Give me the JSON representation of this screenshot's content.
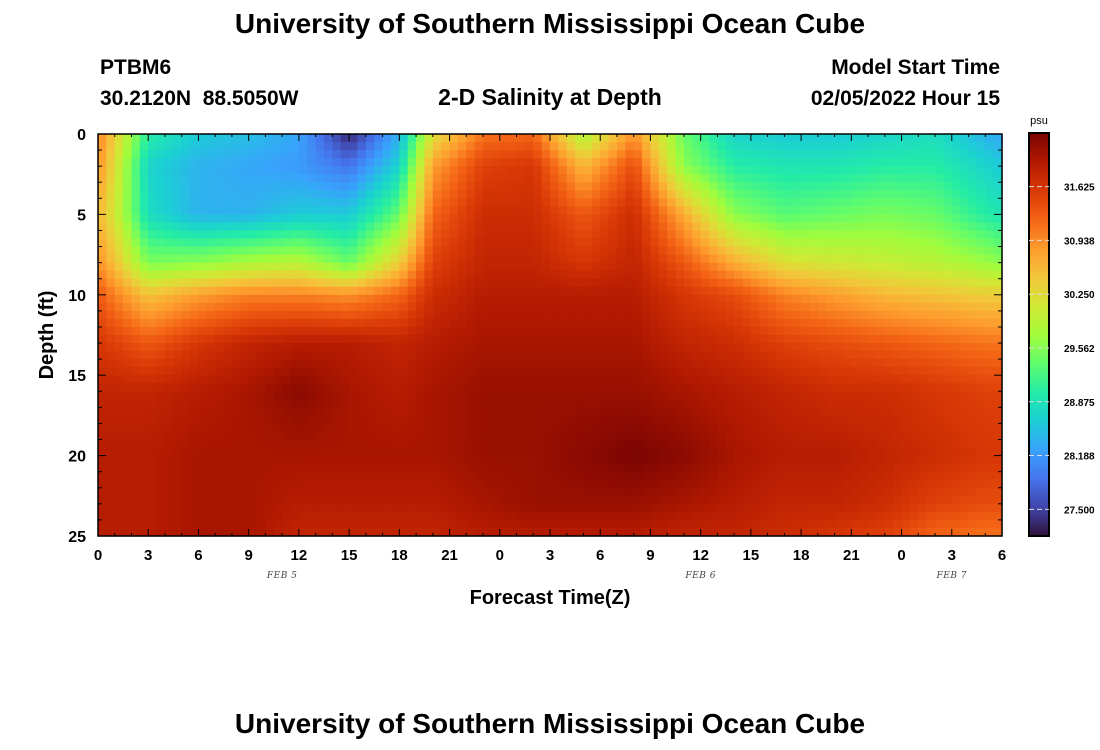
{
  "page": {
    "title_top": "University of Southern Mississippi Ocean Cube",
    "title_bottom": "University of Southern Mississippi Ocean Cube",
    "station_id": "PTBM6",
    "station_coords": "30.2120N  88.5050W",
    "plot_title": "2-D Salinity at Depth",
    "model_label": "Model Start Time",
    "model_time": "02/05/2022 Hour 15"
  },
  "chart_data": {
    "type": "heatmap",
    "title": "2-D Salinity at Depth",
    "xlabel": "Forecast Time(Z)",
    "ylabel": "Depth (ft)",
    "x_range_hours": [
      0,
      54
    ],
    "x_tick_step_hours": 3,
    "x_tick_labels": [
      "0",
      "3",
      "6",
      "9",
      "12",
      "15",
      "18",
      "21",
      "0",
      "3",
      "6",
      "9",
      "12",
      "15",
      "18",
      "21",
      "0",
      "3",
      "6"
    ],
    "date_labels": [
      {
        "text": "FEB 5",
        "hour": 11
      },
      {
        "text": "FEB 6",
        "hour": 36
      },
      {
        "text": "FEB 7",
        "hour": 51
      }
    ],
    "y_range_ft": [
      0,
      25
    ],
    "y_ticks": [
      0,
      5,
      10,
      15,
      20,
      25
    ],
    "colorbar": {
      "unit": "psu",
      "min": 27.16,
      "max": 32.31,
      "ticks": [
        "31.625",
        "30.938",
        "30.250",
        "29.562",
        "28.875",
        "28.188",
        "27.500"
      ],
      "tick_values": [
        31.625,
        30.938,
        30.25,
        29.562,
        28.875,
        28.188,
        27.5
      ],
      "colormap": [
        "#30123b",
        "#4145ab",
        "#4675ed",
        "#39a2fc",
        "#1bcfd4",
        "#24eca6",
        "#61fc6c",
        "#a4fc3b",
        "#d1e834",
        "#f3c63a",
        "#fe9b2d",
        "#f36315",
        "#d93806",
        "#b11901",
        "#7a0402"
      ]
    },
    "field": {
      "description": "Salinity (psu) sampled at forecast hours and depths (ft); bilinearly interpolated for display",
      "hours": [
        0,
        1,
        3,
        6,
        9,
        12,
        15,
        18,
        20,
        23,
        26,
        29,
        32,
        35,
        38,
        41,
        44,
        47,
        50,
        53,
        54
      ],
      "depths": [
        0,
        2,
        5,
        8,
        10,
        13,
        16,
        20,
        23,
        25
      ],
      "values": [
        [
          31.0,
          30.9,
          30.6,
          30.9,
          31.3,
          31.6,
          31.8,
          31.9,
          31.9,
          31.9
        ],
        [
          30.4,
          30.2,
          30.1,
          30.5,
          31.0,
          31.5,
          31.8,
          31.9,
          31.9,
          31.9
        ],
        [
          29.0,
          28.7,
          28.8,
          29.5,
          30.5,
          31.3,
          31.8,
          31.9,
          31.9,
          31.9
        ],
        [
          28.6,
          28.4,
          28.4,
          29.6,
          30.8,
          31.6,
          31.9,
          32.0,
          32.0,
          32.0
        ],
        [
          28.5,
          28.3,
          28.4,
          29.8,
          31.0,
          31.8,
          32.0,
          32.0,
          32.0,
          32.0
        ],
        [
          28.3,
          28.2,
          28.6,
          29.9,
          31.0,
          31.9,
          32.2,
          32.0,
          31.9,
          31.8
        ],
        [
          27.3,
          27.9,
          28.6,
          29.4,
          30.9,
          31.9,
          32.0,
          32.0,
          31.9,
          31.8
        ],
        [
          28.4,
          28.7,
          29.4,
          30.4,
          31.2,
          31.8,
          31.9,
          32.0,
          31.9,
          31.8
        ],
        [
          30.2,
          30.8,
          31.2,
          31.5,
          31.7,
          31.9,
          32.0,
          32.0,
          31.9,
          31.8
        ],
        [
          31.1,
          31.5,
          31.7,
          31.8,
          31.9,
          32.0,
          32.1,
          32.1,
          32.0,
          31.9
        ],
        [
          31.2,
          31.6,
          31.7,
          31.8,
          31.9,
          32.0,
          32.1,
          32.1,
          32.1,
          31.9
        ],
        [
          29.8,
          30.6,
          31.3,
          31.6,
          31.9,
          32.0,
          32.1,
          32.2,
          32.1,
          31.9
        ],
        [
          30.9,
          31.4,
          31.7,
          31.8,
          31.9,
          32.0,
          32.1,
          32.3,
          32.1,
          31.9
        ],
        [
          29.4,
          29.6,
          30.7,
          31.3,
          31.6,
          31.8,
          32.0,
          32.2,
          32.0,
          31.8
        ],
        [
          28.7,
          29.0,
          29.6,
          30.7,
          31.4,
          31.7,
          31.9,
          32.0,
          31.9,
          31.8
        ],
        [
          28.6,
          28.9,
          29.3,
          30.2,
          31.0,
          31.5,
          31.8,
          31.9,
          31.8,
          31.7
        ],
        [
          28.6,
          28.9,
          29.4,
          30.1,
          30.8,
          31.4,
          31.7,
          31.9,
          31.8,
          31.6
        ],
        [
          28.7,
          29.0,
          29.5,
          30.0,
          30.6,
          31.3,
          31.7,
          31.8,
          31.7,
          31.5
        ],
        [
          28.8,
          29.0,
          29.4,
          29.9,
          30.5,
          31.2,
          31.6,
          31.7,
          31.5,
          31.2
        ],
        [
          28.4,
          28.7,
          29.0,
          29.7,
          30.4,
          31.1,
          31.5,
          31.6,
          31.4,
          31.1
        ],
        [
          28.3,
          28.6,
          28.9,
          29.6,
          30.4,
          31.1,
          31.5,
          31.6,
          31.4,
          31.1
        ]
      ]
    }
  }
}
